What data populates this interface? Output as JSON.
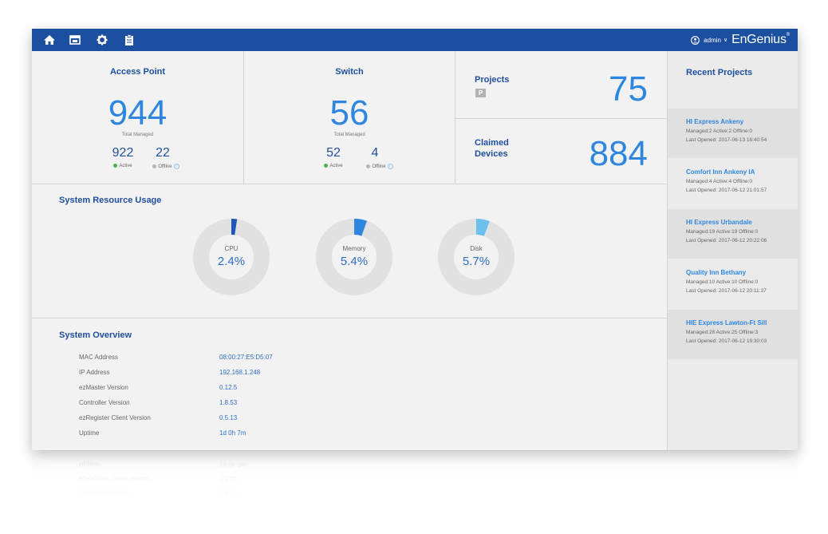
{
  "topbar": {
    "nav": [
      "home-icon",
      "dashboard-icon",
      "gear-icon",
      "clipboard-icon"
    ],
    "user": "admin",
    "caret": "∨",
    "brand": "EnGenius",
    "brand_mark": "®",
    "bar_color": "#1c4fa0"
  },
  "access_point": {
    "title": "Access Point",
    "total": "944",
    "total_label": "Total Managed",
    "active": "922",
    "active_label": "Active",
    "offline": "22",
    "offline_label": "Offline"
  },
  "switch": {
    "title": "Switch",
    "total": "56",
    "total_label": "Total Managed",
    "active": "52",
    "active_label": "Active",
    "offline": "4",
    "offline_label": "Offline"
  },
  "projects": {
    "title": "Projects",
    "count": "75",
    "icon": "project-p-icon",
    "icon_letter": "P"
  },
  "claimed": {
    "title_line1": "Claimed",
    "title_line2": "Devices",
    "count": "884"
  },
  "resource": {
    "title": "System Resource Usage",
    "gauges": [
      {
        "label": "CPU",
        "value": "2.4%",
        "fraction": 0.024,
        "color": "#1c59b8"
      },
      {
        "label": "Memory",
        "value": "5.4%",
        "fraction": 0.054,
        "color": "#2e86de"
      },
      {
        "label": "Disk",
        "value": "5.7%",
        "fraction": 0.057,
        "color": "#6cc0ec"
      }
    ],
    "track_color": "#e1e1e1"
  },
  "overview": {
    "title": "System Overview",
    "rows": [
      {
        "label": "MAC Address",
        "value": "08:00:27:E5:D5:07"
      },
      {
        "label": "IP Address",
        "value": "192.168.1.248"
      },
      {
        "label": "ezMaster Version",
        "value": "0.12.5"
      },
      {
        "label": "Controller Version",
        "value": "1.8.53"
      },
      {
        "label": "ezRegister Client Version",
        "value": "0.5.13"
      },
      {
        "label": "Uptime",
        "value": "1d 0h 7m"
      }
    ]
  },
  "recent": {
    "title": "Recent Projects",
    "items": [
      {
        "name": "HI Express Ankeny",
        "stats": "Managed:2   Active:2   Offline:0",
        "last": "Last Opened: 2017-06-13 16:40:54"
      },
      {
        "name": "Comfort Inn Ankeny IA",
        "stats": "Managed:4   Active:4   Offline:0",
        "last": "Last Opened: 2017-06-12 21:01:57"
      },
      {
        "name": "HI Express Urbandale",
        "stats": "Managed:19   Active:19   Offline:0",
        "last": "Last Opened: 2017-06-12 20:22:06"
      },
      {
        "name": "Quality Inn Bethany",
        "stats": "Managed:10   Active:10   Offline:0",
        "last": "Last Opened: 2017-06-12 20:11:37"
      },
      {
        "name": "HIE Express Lawton-Ft Sill",
        "stats": "Managed:28   Active:25   Offline:3",
        "last": "Last Opened: 2017-06-12 19:30:03"
      }
    ]
  },
  "status_colors": {
    "active": "#4caf50",
    "offline": "#b5b5b5"
  }
}
